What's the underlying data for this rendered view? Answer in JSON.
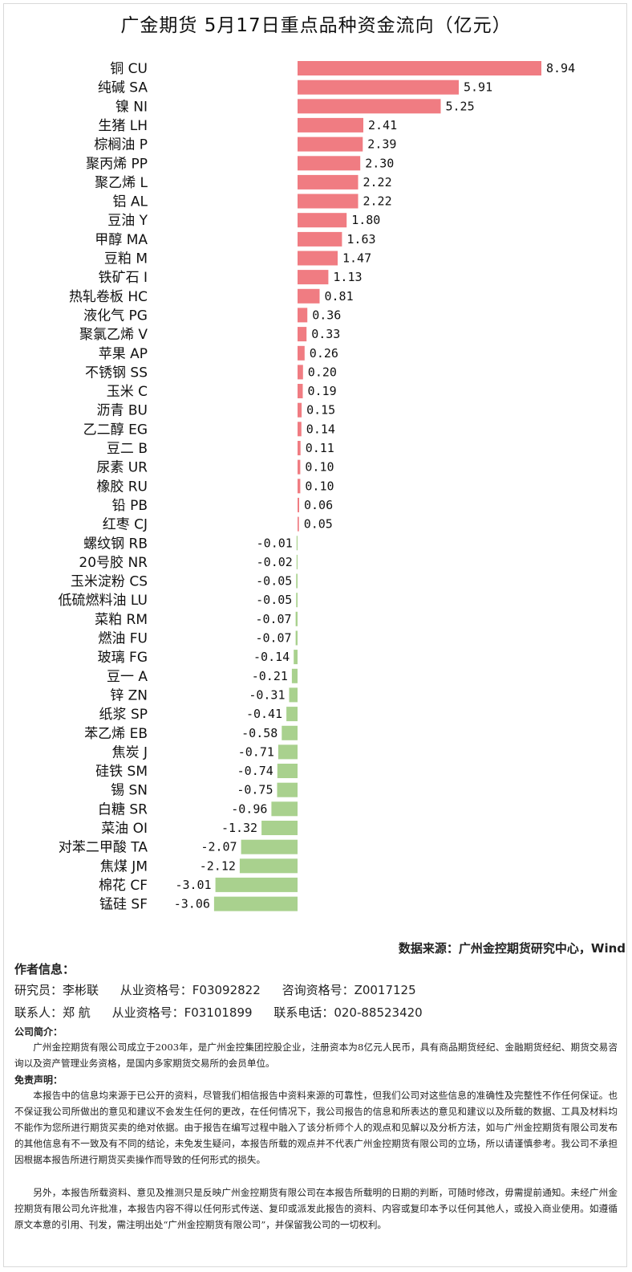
{
  "title": "广金期货 5月17日重点品种资金流向（亿元）",
  "chart_data": {
    "type": "bar",
    "orientation": "horizontal",
    "title": "广金期货 5月17日重点品种资金流向（亿元）",
    "colors": {
      "positive": "#f07c82",
      "negative": "#a9d18e"
    },
    "categories": [
      "铜 CU",
      "纯碱 SA",
      "镍 NI",
      "生猪 LH",
      "棕榈油 P",
      "聚丙烯 PP",
      "聚乙烯 L",
      "铝 AL",
      "豆油 Y",
      "甲醇 MA",
      "豆粕 M",
      "铁矿石 I",
      "热轧卷板 HC",
      "液化气 PG",
      "聚氯乙烯 V",
      "苹果 AP",
      "不锈钢 SS",
      "玉米 C",
      "沥青 BU",
      "乙二醇 EG",
      "豆二 B",
      "尿素 UR",
      "橡胶 RU",
      "铅 PB",
      "红枣 CJ",
      "螺纹钢 RB",
      "20号胶 NR",
      "玉米淀粉 CS",
      "低硫燃料油 LU",
      "菜粕 RM",
      "燃油 FU",
      "玻璃 FG",
      "豆一 A",
      "锌 ZN",
      "纸浆 SP",
      "苯乙烯 EB",
      "焦炭 J",
      "硅铁 SM",
      "锡 SN",
      "白糖 SR",
      "菜油 OI",
      "对苯二甲酸 TA",
      "焦煤 JM",
      "棉花 CF",
      "锰硅 SF"
    ],
    "values": [
      8.94,
      5.91,
      5.25,
      2.41,
      2.39,
      2.3,
      2.22,
      2.22,
      1.8,
      1.63,
      1.47,
      1.13,
      0.81,
      0.36,
      0.33,
      0.26,
      0.2,
      0.19,
      0.15,
      0.14,
      0.11,
      0.1,
      0.1,
      0.06,
      0.05,
      -0.01,
      -0.02,
      -0.05,
      -0.05,
      -0.07,
      -0.07,
      -0.14,
      -0.21,
      -0.31,
      -0.41,
      -0.58,
      -0.71,
      -0.74,
      -0.75,
      -0.96,
      -1.32,
      -2.07,
      -2.12,
      -3.01,
      -3.06
    ],
    "value_labels": [
      "8.94",
      "5.91",
      "5.25",
      "2.41",
      "2.39",
      "2.30",
      "2.22",
      "2.22",
      "1.80",
      "1.63",
      "1.47",
      "1.13",
      "0.81",
      "0.36",
      "0.33",
      "0.26",
      "0.20",
      "0.19",
      "0.15",
      "0.14",
      "0.11",
      "0.10",
      "0.10",
      "0.06",
      "0.05",
      "-0.01",
      "-0.02",
      "-0.05",
      "-0.05",
      "-0.07",
      "-0.07",
      "-0.14",
      "-0.21",
      "-0.31",
      "-0.41",
      "-0.58",
      "-0.71",
      "-0.74",
      "-0.75",
      "-0.96",
      "-1.32",
      "-2.07",
      "-2.12",
      "-3.01",
      "-3.06"
    ],
    "xlim": [
      -3.5,
      9.5
    ],
    "grid": false,
    "legend": "none"
  },
  "source": "数据来源：广州金控期货研究中心，Wind",
  "author_info": {
    "heading": "作者信息：",
    "row1": [
      "研究员：李彬联",
      "从业资格号：F03092822",
      "咨询资格号：Z0017125"
    ],
    "row2": [
      "联系人：郑  航",
      "从业资格号：F03101899",
      "联系电话：020-88523420"
    ]
  },
  "company": {
    "heading": "公司简介：",
    "text": "广州金控期货有限公司成立于2003年，是广州金控集团控股企业，注册资本为8亿元人民币，具有商品期货经纪、金融期货经纪、期货交易咨询以及资产管理业务资格，是国内多家期货交易所的会员单位。"
  },
  "disclaimer": {
    "heading": "免责声明：",
    "p1": "本报告中的信息均来源于已公开的资料，尽管我们相信报告中资料来源的可靠性，但我们公司对这些信息的准确性及完整性不作任何保证。也不保证我公司所做出的意见和建议不会发生任何的更改，在任何情况下，我公司报告的信息和所表达的意见和建议以及所载的数据、工具及材料均不能作为您所进行期货买卖的绝对依据。由于报告在编写过程中融入了该分析师个人的观点和见解以及分析方法，如与广州金控期货有限公司发布的其他信息有不一致及有不同的结论，未免发生疑问，本报告所载的观点并不代表广州金控期货有限公司的立场，所以请谨慎参考。我公司不承担因根据本报告所进行期货买卖操作而导致的任何形式的损失。",
    "p2": "另外，本报告所载资料、意见及推测只是反映广州金控期货有限公司在本报告所载明的日期的判断，可随时修改，毋需提前通知。未经广州金控期货有限公司允许批准，本报告内容不得以任何形式传送、复印或派发此报告的资料、内容或复印本予以任何其他人，或投入商业使用。如遵循原文本意的引用、刊发，需注明出处“广州金控期货有限公司”，并保留我公司的一切权利。"
  }
}
